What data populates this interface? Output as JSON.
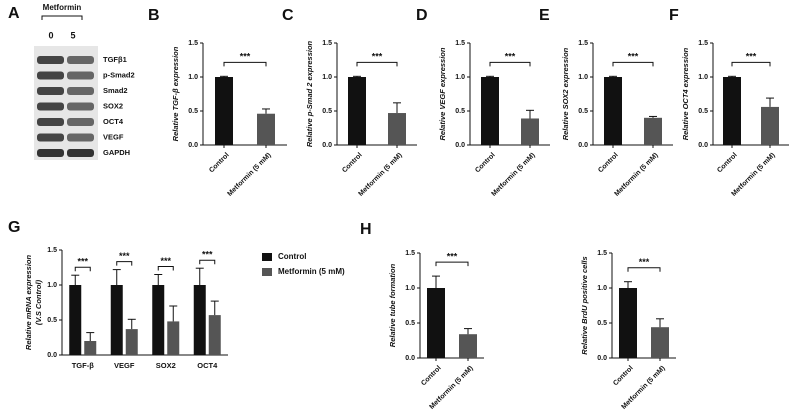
{
  "blot": {
    "panel_label": "A",
    "treatment": "Metformin",
    "doses": [
      "0",
      "5"
    ],
    "rows": [
      "TGFβ1",
      "p-Smad2",
      "Smad2",
      "SOX2",
      "OCT4",
      "VEGF",
      "GAPDH"
    ]
  },
  "chart_data": [
    {
      "type": "bar",
      "panel_label": "B",
      "ylabel": "Relative TGF-β expression",
      "categories": [
        "Control",
        "Metformin (5 mM)"
      ],
      "values": [
        1.0,
        0.46
      ],
      "errors": [
        0.01,
        0.07
      ],
      "colors": [
        "#111111",
        "#555555"
      ],
      "annotation": "***",
      "ylim": [
        0,
        1.5
      ],
      "yticks": [
        {
          "value": 0,
          "label": "0.0"
        },
        0.5,
        {
          "value": 1,
          "label": "1.0"
        },
        1.5
      ]
    },
    {
      "type": "bar",
      "panel_label": "C",
      "ylabel": "Relative p-Smad 2 expression",
      "categories": [
        "Control",
        "Metformin (5 mM)"
      ],
      "values": [
        1.0,
        0.47
      ],
      "errors": [
        0.01,
        0.15
      ],
      "colors": [
        "#111111",
        "#555555"
      ],
      "annotation": "***",
      "ylim": [
        0,
        1.5
      ],
      "yticks": [
        {
          "value": 0,
          "label": "0.0"
        },
        0.5,
        {
          "value": 1,
          "label": "1.0"
        },
        1.5
      ]
    },
    {
      "type": "bar",
      "panel_label": "D",
      "ylabel": "Relative VEGF expression",
      "categories": [
        "Control",
        "Metformin (5 mM)"
      ],
      "values": [
        1.0,
        0.39
      ],
      "errors": [
        0.01,
        0.12
      ],
      "colors": [
        "#111111",
        "#555555"
      ],
      "annotation": "***",
      "ylim": [
        0,
        1.5
      ],
      "yticks": [
        {
          "value": 0,
          "label": "0.0"
        },
        0.5,
        {
          "value": 1,
          "label": "1.0"
        },
        1.5
      ]
    },
    {
      "type": "bar",
      "panel_label": "E",
      "ylabel": "Relative SOX2 expression",
      "categories": [
        "Control",
        "Metformin (5 mM)"
      ],
      "values": [
        1.0,
        0.4
      ],
      "errors": [
        0.01,
        0.02
      ],
      "colors": [
        "#111111",
        "#555555"
      ],
      "annotation": "***",
      "ylim": [
        0,
        1.5
      ],
      "yticks": [
        {
          "value": 0,
          "label": "0.0"
        },
        0.5,
        {
          "value": 1,
          "label": "1.0"
        },
        1.5
      ]
    },
    {
      "type": "bar",
      "panel_label": "F",
      "ylabel": "Relative OCT4 expression",
      "categories": [
        "Control",
        "Metformin (5 mM)"
      ],
      "values": [
        1.0,
        0.56
      ],
      "errors": [
        0.01,
        0.13
      ],
      "colors": [
        "#111111",
        "#555555"
      ],
      "annotation": "***",
      "ylim": [
        0,
        1.5
      ],
      "yticks": [
        {
          "value": 0,
          "label": "0.0"
        },
        0.5,
        {
          "value": 1,
          "label": "1.0"
        },
        1.5
      ]
    },
    {
      "type": "grouped",
      "panel_label": "G",
      "ylabel": [
        "Relative mRNA expression",
        "(V.S Control)"
      ],
      "categories": [
        "TGF-β",
        "VEGF",
        "SOX2",
        "OCT4"
      ],
      "series": [
        {
          "name": "Control",
          "color": "#111111",
          "values": [
            1.0,
            1.0,
            1.0,
            1.0
          ],
          "errors": [
            0.14,
            0.22,
            0.15,
            0.24
          ]
        },
        {
          "name": "Metformin (5 mM)",
          "color": "#555555",
          "values": [
            0.2,
            0.37,
            0.48,
            0.57
          ],
          "errors": [
            0.12,
            0.14,
            0.22,
            0.2
          ]
        }
      ],
      "annotations": [
        "***",
        "***",
        "***",
        "***"
      ],
      "legend": "right",
      "ylim": [
        0,
        1.5
      ],
      "yticks": [
        {
          "value": 0,
          "label": "0.0"
        },
        0.5,
        {
          "value": 1,
          "label": "1.0"
        },
        1.5
      ]
    },
    {
      "type": "bar",
      "panel_label": "H",
      "ylabel": "Relative tube formation",
      "categories": [
        "Control",
        "Metformin (5 mM)"
      ],
      "values": [
        1.0,
        0.34
      ],
      "errors": [
        0.17,
        0.08
      ],
      "colors": [
        "#111111",
        "#555555"
      ],
      "annotation": "***",
      "ylim": [
        0,
        1.5
      ],
      "yticks": [
        {
          "value": 0,
          "label": "0.0"
        },
        0.5,
        {
          "value": 1,
          "label": "1.0"
        },
        1.5
      ]
    },
    {
      "type": "bar",
      "ylabel": "Relative BrdU positive cells",
      "categories": [
        "Control",
        "Metformin (5 mM)"
      ],
      "values": [
        1.0,
        0.44
      ],
      "errors": [
        0.09,
        0.12
      ],
      "colors": [
        "#111111",
        "#555555"
      ],
      "annotation": "***",
      "ylim": [
        0,
        1.5
      ],
      "yticks": [
        {
          "value": 0,
          "label": "0.0"
        },
        0.5,
        {
          "value": 1,
          "label": "1.0"
        },
        1.5
      ]
    }
  ]
}
